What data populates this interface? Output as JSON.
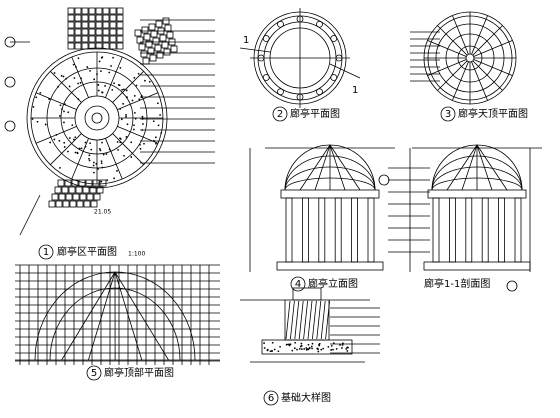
{
  "panels": [
    {
      "number": "1",
      "title": "廊亭区平面图",
      "scale": "1:100"
    },
    {
      "number": "2",
      "title": "廊亭平面图"
    },
    {
      "number": "3",
      "title": "廊亭天顶平面图"
    },
    {
      "number": "4",
      "title": "廊亭立面图"
    },
    {
      "title": "廊亭1-1剖面图"
    },
    {
      "number": "5",
      "title": "廊亭顶部平面图"
    },
    {
      "number": "6",
      "title": "基础大样图"
    }
  ],
  "section_marks": [
    "1",
    "1"
  ],
  "elevation_mark": "21.05"
}
